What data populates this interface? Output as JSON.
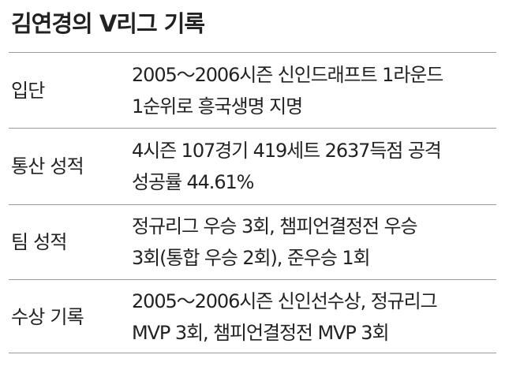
{
  "title": "김연경의 V리그 기록",
  "rows": [
    {
      "label": "입단",
      "lines": [
        "2005～2006시즌 신인드래프트 1라운드",
        "1순위로 흥국생명 지명"
      ]
    },
    {
      "label": "통산 성적",
      "lines": [
        "4시즌 107경기 419세트 2637득점 공격",
        "성공률 44.61%"
      ]
    },
    {
      "label": "팀 성적",
      "lines": [
        "정규리그 우승 3회, 챔피언결정전 우승",
        "3회(통합 우승 2회), 준우승 1회"
      ]
    },
    {
      "label": "수상 기록",
      "lines": [
        "2005～2006시즌 신인선수상, 정규리그",
        "MVP 3회, 챔피언결정전 MVP 3회"
      ]
    }
  ]
}
